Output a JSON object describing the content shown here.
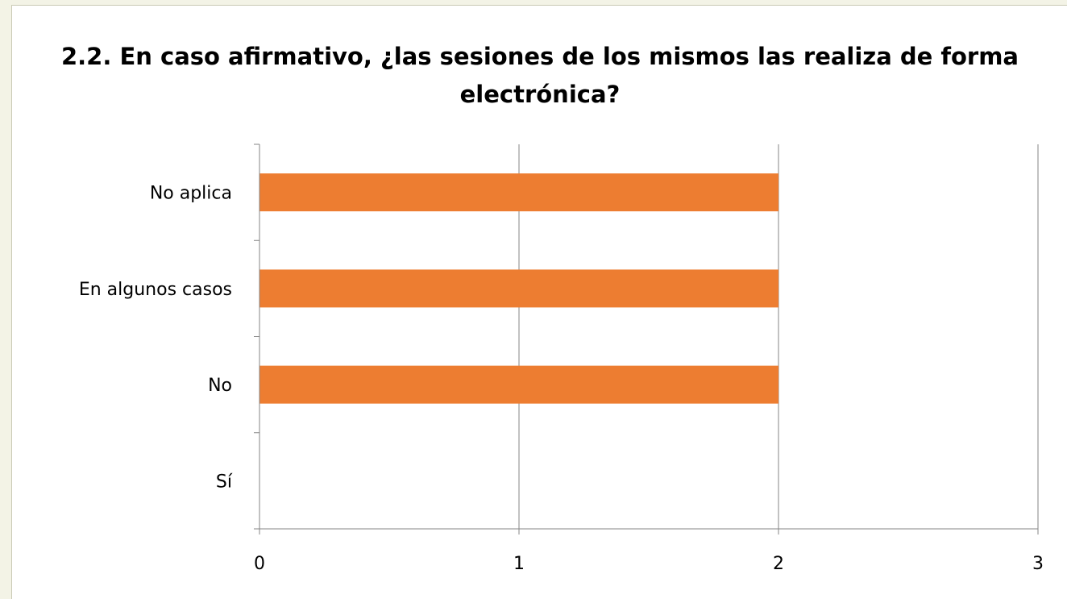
{
  "chart_data": {
    "type": "bar",
    "orientation": "horizontal",
    "title": "2.2. En caso afirmativo, ¿las sesiones de los mismos las realiza de forma electrónica?",
    "categories": [
      "Sí",
      "No",
      "En algunos casos",
      "No aplica"
    ],
    "values": [
      0,
      2,
      2,
      2
    ],
    "xlim": [
      0,
      3
    ],
    "x_ticks": [
      "0",
      "1",
      "2",
      "3"
    ],
    "grid": "vertical",
    "legend": "none",
    "bar_color": "#ED7D31"
  }
}
